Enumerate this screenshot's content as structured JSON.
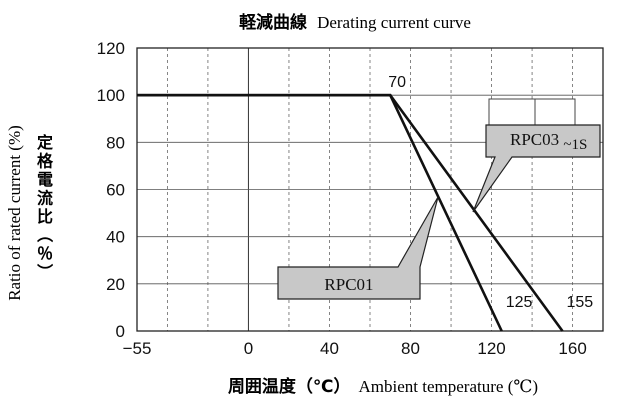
{
  "chart_data": {
    "type": "line",
    "title_jp": "軽減曲線",
    "title_en": "Derating current curve",
    "xlabel_jp": "周囲温度（℃）",
    "xlabel_en": "Ambient temperature (℃)",
    "ylabel_en": "Ratio of rated current (%)",
    "ylabel_jp": [
      "定",
      "格",
      "電",
      "流",
      "比",
      "（",
      "％",
      "）"
    ],
    "x_ticks": [
      {
        "value": -55,
        "label": "−55"
      },
      {
        "value": 0,
        "label": "0"
      },
      {
        "value": 40,
        "label": "40"
      },
      {
        "value": 80,
        "label": "80"
      },
      {
        "value": 120,
        "label": "120"
      },
      {
        "value": 160,
        "label": "160"
      }
    ],
    "y_ticks": [
      {
        "value": 0,
        "label": "0"
      },
      {
        "value": 20,
        "label": "20"
      },
      {
        "value": 40,
        "label": "40"
      },
      {
        "value": 60,
        "label": "60"
      },
      {
        "value": 80,
        "label": "80"
      },
      {
        "value": 100,
        "label": "100"
      },
      {
        "value": 120,
        "label": "120"
      }
    ],
    "xlim": [
      -55,
      175
    ],
    "ylim": [
      0,
      120
    ],
    "grid": true,
    "series": [
      {
        "name": "RPC01",
        "x": [
          -55,
          70,
          125
        ],
        "y": [
          100,
          100,
          0
        ]
      },
      {
        "name": "RPC03~1S",
        "x": [
          -55,
          70,
          155
        ],
        "y": [
          100,
          100,
          0
        ]
      }
    ],
    "annotations": [
      {
        "text": "70",
        "x": 70,
        "y": 100
      },
      {
        "text": "125",
        "x": 125,
        "y": 0
      },
      {
        "text": "155",
        "x": 155,
        "y": 0
      }
    ],
    "callouts": [
      {
        "series": "RPC01",
        "label": "RPC01"
      },
      {
        "series": "RPC03~1S",
        "label_main": "RPC03",
        "label_sub": "~1S"
      }
    ]
  }
}
